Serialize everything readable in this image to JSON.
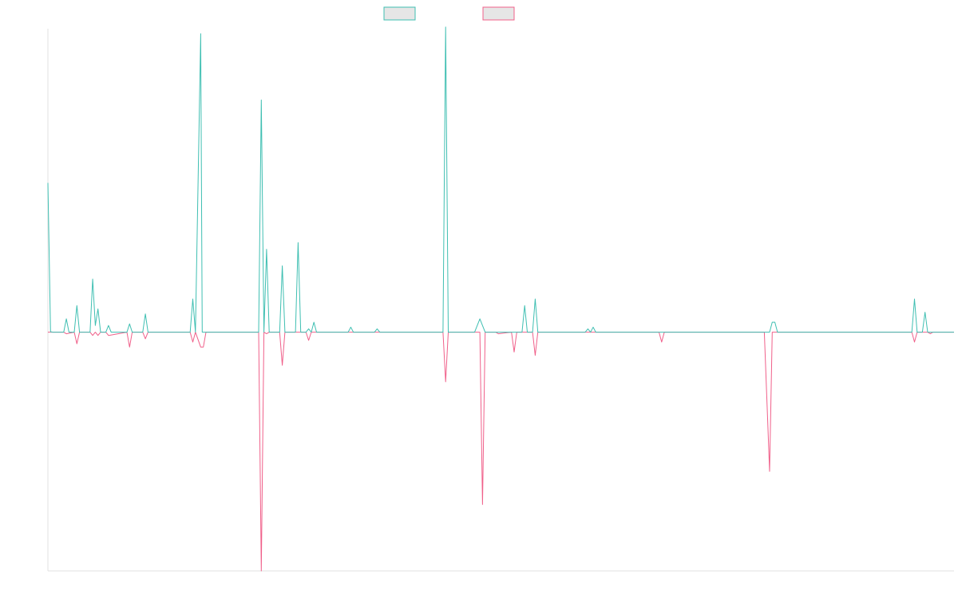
{
  "chart_data": {
    "type": "line",
    "x_count": 172,
    "ylim": [
      -0.72,
      0.915
    ],
    "grid": false,
    "legend_placement": "top-center",
    "series": [
      {
        "color": "#3fbfb2",
        "fill": "#e6e6e6",
        "points": [
          [
            0,
            0.45
          ],
          [
            0.5,
            0.001
          ],
          [
            1,
            0
          ],
          [
            2,
            0
          ],
          [
            3,
            0
          ],
          [
            3.5,
            0.04
          ],
          [
            4,
            0
          ],
          [
            5,
            0
          ],
          [
            5.5,
            0.08
          ],
          [
            6,
            0
          ],
          [
            7,
            0
          ],
          [
            8,
            0
          ],
          [
            8.5,
            0.16
          ],
          [
            9,
            0.02
          ],
          [
            9.5,
            0.07
          ],
          [
            10,
            0
          ],
          [
            11,
            0
          ],
          [
            11.5,
            0.02
          ],
          [
            12,
            0
          ],
          [
            13,
            0
          ],
          [
            14,
            0
          ],
          [
            15,
            0
          ],
          [
            15.5,
            0.025
          ],
          [
            16,
            0
          ],
          [
            17,
            0
          ],
          [
            18,
            0
          ],
          [
            18.5,
            0.055
          ],
          [
            19,
            0
          ],
          [
            20,
            0
          ],
          [
            21,
            0
          ],
          [
            22,
            0
          ],
          [
            23,
            0
          ],
          [
            24,
            0
          ],
          [
            25,
            0
          ],
          [
            26,
            0
          ],
          [
            27,
            0
          ],
          [
            27.5,
            0.1
          ],
          [
            28,
            0
          ],
          [
            29,
            0.9
          ],
          [
            29.3,
            0
          ],
          [
            30,
            0
          ],
          [
            31,
            0
          ],
          [
            32,
            0
          ],
          [
            33,
            0
          ],
          [
            34,
            0
          ],
          [
            35,
            0
          ],
          [
            36,
            0
          ],
          [
            37,
            0
          ],
          [
            38,
            0
          ],
          [
            39,
            0
          ],
          [
            40,
            0
          ],
          [
            40.5,
            0.7
          ],
          [
            41,
            0
          ],
          [
            41.5,
            0.25
          ],
          [
            42,
            0
          ],
          [
            43,
            0
          ],
          [
            44,
            0
          ],
          [
            44.5,
            0.2
          ],
          [
            45,
            0
          ],
          [
            46,
            0
          ],
          [
            47,
            0
          ],
          [
            47.5,
            0.27
          ],
          [
            48,
            0
          ],
          [
            49,
            0
          ],
          [
            49.5,
            0.01
          ],
          [
            50,
            0
          ],
          [
            50.5,
            0.03
          ],
          [
            51,
            0
          ],
          [
            52,
            0
          ],
          [
            53,
            0
          ],
          [
            54,
            0
          ],
          [
            55,
            0
          ],
          [
            56,
            0
          ],
          [
            57,
            0
          ],
          [
            57.5,
            0.015
          ],
          [
            58,
            0
          ],
          [
            59,
            0
          ],
          [
            60,
            0
          ],
          [
            61,
            0
          ],
          [
            62,
            0
          ],
          [
            62.5,
            0.01
          ],
          [
            63,
            0
          ],
          [
            64,
            0
          ],
          [
            65,
            0
          ],
          [
            66,
            0
          ],
          [
            67,
            0
          ],
          [
            68,
            0
          ],
          [
            69,
            0
          ],
          [
            70,
            0
          ],
          [
            71,
            0
          ],
          [
            72,
            0
          ],
          [
            73,
            0
          ],
          [
            74,
            0
          ],
          [
            75,
            0
          ],
          [
            75.5,
            0.92
          ],
          [
            76,
            0
          ],
          [
            77,
            0
          ],
          [
            78,
            0
          ],
          [
            79,
            0
          ],
          [
            80,
            0
          ],
          [
            81,
            0
          ],
          [
            82,
            0.04
          ],
          [
            83,
            0
          ],
          [
            84,
            0
          ],
          [
            85,
            0
          ],
          [
            86,
            0
          ],
          [
            87,
            0
          ],
          [
            88,
            0
          ],
          [
            89,
            0
          ],
          [
            90,
            0
          ],
          [
            90.5,
            0.08
          ],
          [
            91,
            0
          ],
          [
            92,
            0
          ],
          [
            92.5,
            0.1
          ],
          [
            93,
            0
          ],
          [
            94,
            0
          ],
          [
            95,
            0
          ],
          [
            96,
            0
          ],
          [
            97,
            0
          ],
          [
            98,
            0
          ],
          [
            99,
            0
          ],
          [
            100,
            0
          ],
          [
            101,
            0
          ],
          [
            102,
            0
          ],
          [
            102.5,
            0.01
          ],
          [
            103,
            0
          ],
          [
            103.5,
            0.015
          ],
          [
            104,
            0
          ],
          [
            105,
            0
          ],
          [
            106,
            0
          ],
          [
            107,
            0
          ],
          [
            108,
            0
          ],
          [
            109,
            0
          ],
          [
            110,
            0
          ],
          [
            111,
            0
          ],
          [
            112,
            0
          ],
          [
            113,
            0
          ],
          [
            114,
            0
          ],
          [
            115,
            0
          ],
          [
            116,
            0
          ],
          [
            117,
            0
          ],
          [
            118,
            0
          ],
          [
            119,
            0
          ],
          [
            120,
            0
          ],
          [
            121,
            0
          ],
          [
            122,
            0
          ],
          [
            123,
            0
          ],
          [
            124,
            0
          ],
          [
            125,
            0
          ],
          [
            126,
            0
          ],
          [
            127,
            0
          ],
          [
            128,
            0
          ],
          [
            129,
            0
          ],
          [
            130,
            0
          ],
          [
            131,
            0
          ],
          [
            132,
            0
          ],
          [
            133,
            0
          ],
          [
            134,
            0
          ],
          [
            135,
            0
          ],
          [
            136,
            0
          ],
          [
            137,
            0
          ],
          [
            137.5,
            0.03
          ],
          [
            138,
            0.03
          ],
          [
            138.5,
            0
          ],
          [
            139,
            0
          ],
          [
            140,
            0
          ],
          [
            141,
            0
          ],
          [
            142,
            0
          ],
          [
            143,
            0
          ],
          [
            144,
            0
          ],
          [
            145,
            0
          ],
          [
            146,
            0
          ],
          [
            147,
            0
          ],
          [
            148,
            0
          ],
          [
            149,
            0
          ],
          [
            150,
            0
          ],
          [
            151,
            0
          ],
          [
            152,
            0
          ],
          [
            153,
            0
          ],
          [
            154,
            0
          ],
          [
            155,
            0
          ],
          [
            156,
            0
          ],
          [
            157,
            0
          ],
          [
            158,
            0
          ],
          [
            159,
            0
          ],
          [
            160,
            0
          ],
          [
            161,
            0
          ],
          [
            162,
            0
          ],
          [
            163,
            0
          ],
          [
            164,
            0
          ],
          [
            164.5,
            0.1
          ],
          [
            165,
            0
          ],
          [
            166,
            0
          ],
          [
            166.5,
            0.06
          ],
          [
            167,
            0
          ],
          [
            168,
            0
          ],
          [
            169,
            0
          ],
          [
            170,
            0
          ],
          [
            171,
            0
          ],
          [
            172,
            0
          ]
        ]
      },
      {
        "color": "#f0608a",
        "fill": "#e6e6e6",
        "points": [
          [
            0,
            0
          ],
          [
            3,
            0
          ],
          [
            3.5,
            -0.005
          ],
          [
            5,
            0
          ],
          [
            5.5,
            -0.035
          ],
          [
            6,
            0
          ],
          [
            8,
            0
          ],
          [
            8.5,
            -0.01
          ],
          [
            9,
            0
          ],
          [
            9.5,
            -0.01
          ],
          [
            10,
            0
          ],
          [
            11,
            0
          ],
          [
            11.5,
            -0.01
          ],
          [
            15,
            0
          ],
          [
            15.5,
            -0.045
          ],
          [
            16,
            0
          ],
          [
            18,
            0
          ],
          [
            18.5,
            -0.02
          ],
          [
            19,
            0
          ],
          [
            27,
            0
          ],
          [
            27.5,
            -0.03
          ],
          [
            28,
            0
          ],
          [
            29,
            -0.045
          ],
          [
            29.5,
            -0.045
          ],
          [
            30,
            0
          ],
          [
            40,
            0
          ],
          [
            40.5,
            -0.72
          ],
          [
            41,
            0
          ],
          [
            41.5,
            -0.005
          ],
          [
            42,
            0
          ],
          [
            44,
            0
          ],
          [
            44.5,
            -0.1
          ],
          [
            45,
            0
          ],
          [
            49,
            0
          ],
          [
            49.5,
            -0.025
          ],
          [
            50,
            0
          ],
          [
            75,
            0
          ],
          [
            75.5,
            -0.15
          ],
          [
            76,
            0
          ],
          [
            82,
            0
          ],
          [
            82.5,
            -0.52
          ],
          [
            83,
            0
          ],
          [
            85,
            0
          ],
          [
            85.5,
            -0.005
          ],
          [
            88,
            0
          ],
          [
            88.5,
            -0.06
          ],
          [
            89,
            0
          ],
          [
            92,
            0
          ],
          [
            92.5,
            -0.07
          ],
          [
            93,
            0
          ],
          [
            116,
            0
          ],
          [
            116.5,
            -0.03
          ],
          [
            117,
            0
          ],
          [
            136,
            0
          ],
          [
            137,
            -0.42
          ],
          [
            137.5,
            0
          ],
          [
            164,
            0
          ],
          [
            164.5,
            -0.03
          ],
          [
            165,
            0
          ],
          [
            167,
            0
          ],
          [
            167.5,
            -0.005
          ],
          [
            168,
            0
          ],
          [
            172,
            0
          ]
        ]
      }
    ]
  }
}
